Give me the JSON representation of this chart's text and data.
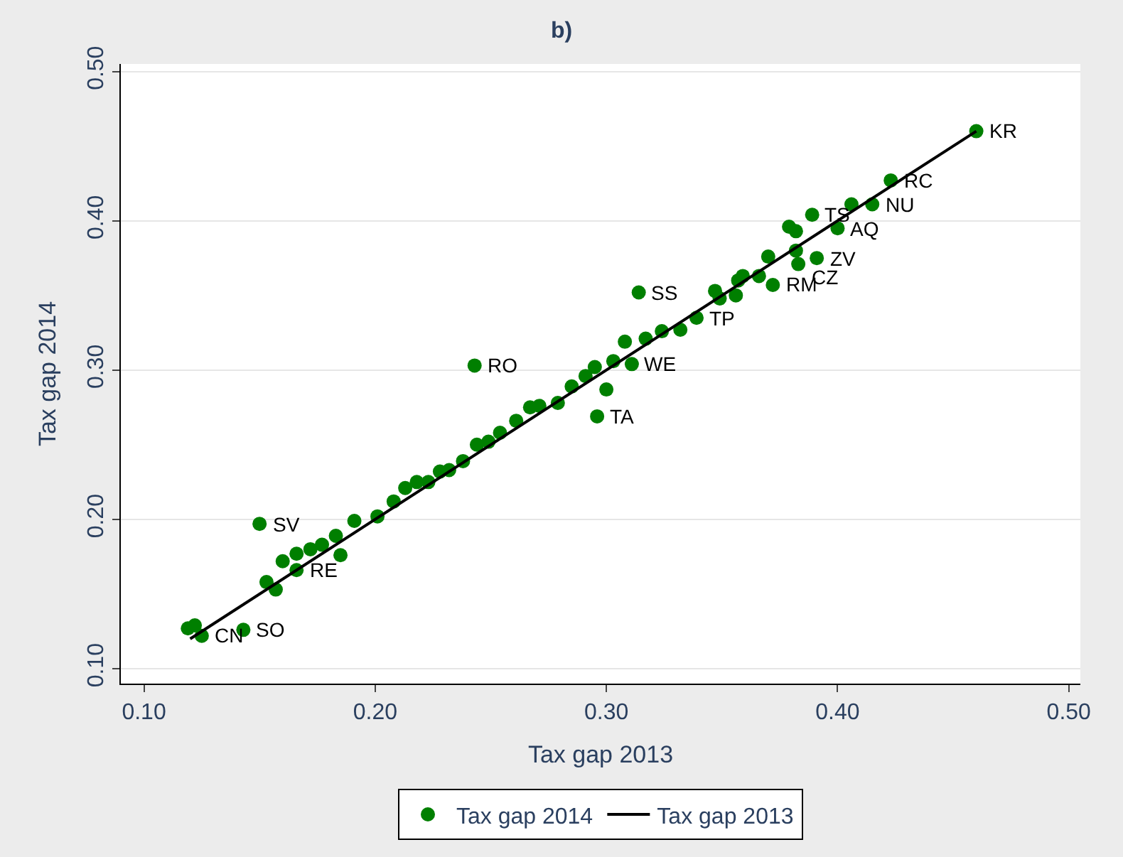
{
  "chart_data": {
    "type": "scatter",
    "title": "b)",
    "xlabel": "Tax gap 2013",
    "ylabel": "Tax gap 2014",
    "xlim": [
      0.09,
      0.505
    ],
    "ylim": [
      0.09,
      0.505
    ],
    "xticks": [
      {
        "value": 0.1,
        "label": "0.10"
      },
      {
        "value": 0.2,
        "label": "0.20"
      },
      {
        "value": 0.3,
        "label": "0.30"
      },
      {
        "value": 0.4,
        "label": "0.40"
      },
      {
        "value": 0.5,
        "label": "0.50"
      }
    ],
    "yticks": [
      {
        "value": 0.1,
        "label": "0.10"
      },
      {
        "value": 0.2,
        "label": "0.20"
      },
      {
        "value": 0.3,
        "label": "0.30"
      },
      {
        "value": 0.4,
        "label": "0.40"
      },
      {
        "value": 0.5,
        "label": "0.50"
      }
    ],
    "grid": "y",
    "legend": "bottom",
    "series": [
      {
        "name": "Tax gap 2014",
        "marker": "circle",
        "color": "#007f00",
        "x": [
          0.46,
          0.423,
          0.406,
          0.415,
          0.389,
          0.379,
          0.382,
          0.4,
          0.37,
          0.382,
          0.391,
          0.383,
          0.359,
          0.357,
          0.366,
          0.372,
          0.347,
          0.349,
          0.356,
          0.314,
          0.339,
          0.332,
          0.324,
          0.317,
          0.308,
          0.303,
          0.311,
          0.295,
          0.291,
          0.285,
          0.3,
          0.296,
          0.243,
          0.279,
          0.271,
          0.267,
          0.261,
          0.254,
          0.249,
          0.244,
          0.238,
          0.232,
          0.228,
          0.223,
          0.218,
          0.213,
          0.208,
          0.201,
          0.191,
          0.183,
          0.177,
          0.172,
          0.166,
          0.185,
          0.16,
          0.15,
          0.153,
          0.157,
          0.119,
          0.122,
          0.125,
          0.143,
          0.166
        ],
        "values": [
          0.46,
          0.427,
          0.411,
          0.411,
          0.404,
          0.396,
          0.393,
          0.395,
          0.376,
          0.38,
          0.375,
          0.371,
          0.363,
          0.36,
          0.363,
          0.357,
          0.353,
          0.348,
          0.35,
          0.352,
          0.335,
          0.327,
          0.326,
          0.321,
          0.319,
          0.306,
          0.304,
          0.302,
          0.296,
          0.289,
          0.287,
          0.269,
          0.303,
          0.278,
          0.276,
          0.275,
          0.266,
          0.258,
          0.252,
          0.25,
          0.239,
          0.233,
          0.232,
          0.225,
          0.225,
          0.221,
          0.212,
          0.202,
          0.199,
          0.189,
          0.183,
          0.18,
          0.177,
          0.176,
          0.172,
          0.197,
          0.158,
          0.153,
          0.127,
          0.129,
          0.122,
          0.126,
          0.166
        ]
      },
      {
        "name": "Tax gap 2013",
        "type": "line",
        "color": "#000000",
        "line_style": "solid",
        "x": [
          0.12,
          0.46
        ],
        "values": [
          0.12,
          0.46
        ]
      }
    ],
    "annotations": [
      {
        "text": "KR",
        "x": 0.46,
        "y": 0.46
      },
      {
        "text": "RC",
        "x": 0.423,
        "y": 0.427
      },
      {
        "text": "NU",
        "x": 0.415,
        "y": 0.411
      },
      {
        "text": "TS",
        "x": 0.389,
        "y": 0.404
      },
      {
        "text": "AQ",
        "x": 0.4,
        "y": 0.395
      },
      {
        "text": "ZV",
        "x": 0.391,
        "y": 0.375
      },
      {
        "text": "CZ",
        "x": 0.383,
        "y": 0.371
      },
      {
        "text": "RM",
        "x": 0.372,
        "y": 0.357
      },
      {
        "text": "SS",
        "x": 0.314,
        "y": 0.352
      },
      {
        "text": "TP",
        "x": 0.339,
        "y": 0.335
      },
      {
        "text": "WE",
        "x": 0.311,
        "y": 0.304
      },
      {
        "text": "RO",
        "x": 0.243,
        "y": 0.303
      },
      {
        "text": "TA",
        "x": 0.296,
        "y": 0.269
      },
      {
        "text": "SV",
        "x": 0.15,
        "y": 0.197
      },
      {
        "text": "RE",
        "x": 0.166,
        "y": 0.166
      },
      {
        "text": "SO",
        "x": 0.143,
        "y": 0.126
      },
      {
        "text": "CN",
        "x": 0.125,
        "y": 0.122
      }
    ]
  }
}
